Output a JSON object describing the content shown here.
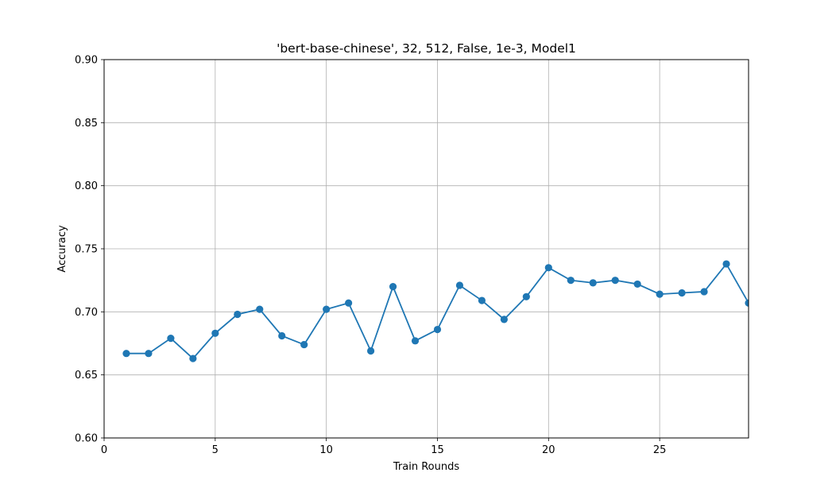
{
  "chart_data": {
    "type": "line",
    "title": "'bert-base-chinese', 32, 512, False, 1e-3, Model1",
    "xlabel": "Train Rounds",
    "ylabel": "Accuracy",
    "xlim": [
      0,
      29
    ],
    "ylim": [
      0.6,
      0.9
    ],
    "xticks": [
      0,
      5,
      10,
      15,
      20,
      25
    ],
    "xtick_labels": [
      "0",
      "5",
      "10",
      "15",
      "20",
      "25"
    ],
    "yticks": [
      0.6,
      0.65,
      0.7,
      0.75,
      0.8,
      0.85,
      0.9
    ],
    "ytick_labels": [
      "0.60",
      "0.65",
      "0.70",
      "0.75",
      "0.80",
      "0.85",
      "0.90"
    ],
    "grid": true,
    "series": [
      {
        "color": "#1f77b4",
        "marker": "circle",
        "x": [
          1,
          2,
          3,
          4,
          5,
          6,
          7,
          8,
          9,
          10,
          11,
          12,
          13,
          14,
          15,
          16,
          17,
          18,
          19,
          20,
          21,
          22,
          23,
          24,
          25,
          26,
          27,
          28,
          29
        ],
        "y": [
          0.667,
          0.667,
          0.679,
          0.663,
          0.683,
          0.698,
          0.702,
          0.681,
          0.674,
          0.702,
          0.707,
          0.669,
          0.72,
          0.677,
          0.686,
          0.721,
          0.709,
          0.694,
          0.712,
          0.735,
          0.725,
          0.723,
          0.725,
          0.722,
          0.714,
          0.715,
          0.716,
          0.738,
          0.707
        ]
      }
    ]
  }
}
